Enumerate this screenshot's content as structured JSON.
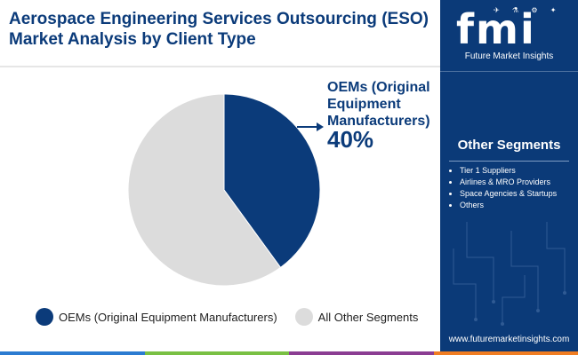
{
  "title_lines": [
    "Aerospace Engineering Services Outsourcing (ESO)",
    "Market Analysis by Client Type"
  ],
  "logo": {
    "text": "fmi",
    "subtitle": "Future Market Insights"
  },
  "sidebar": {
    "other_segments_title": "Other Segments",
    "other_segments": [
      "Tier 1 Suppliers",
      "Airlines & MRO Providers",
      "Space Agencies & Startups",
      "Others"
    ],
    "url": "www.futuremarketinsights.com"
  },
  "callout": {
    "label": "OEMs (Original Equipment Manufacturers)",
    "value": "40%"
  },
  "colors": {
    "oem": "#0b3b7a",
    "other": "#dcdcdc",
    "sidebar": "#0b3a78",
    "stripe": [
      "#2b7bd1",
      "#79c043",
      "#8b3d92",
      "#f07d22"
    ]
  },
  "chart_data": {
    "type": "pie",
    "title": "Aerospace Engineering Services Outsourcing (ESO) Market Analysis by Client Type",
    "slices": [
      {
        "label": "OEMs (Original Equipment Manufacturers)",
        "value": 40,
        "color": "#0b3b7a"
      },
      {
        "label": "All Other Segments",
        "value": 60,
        "color": "#dcdcdc"
      }
    ],
    "legend_position": "bottom"
  }
}
